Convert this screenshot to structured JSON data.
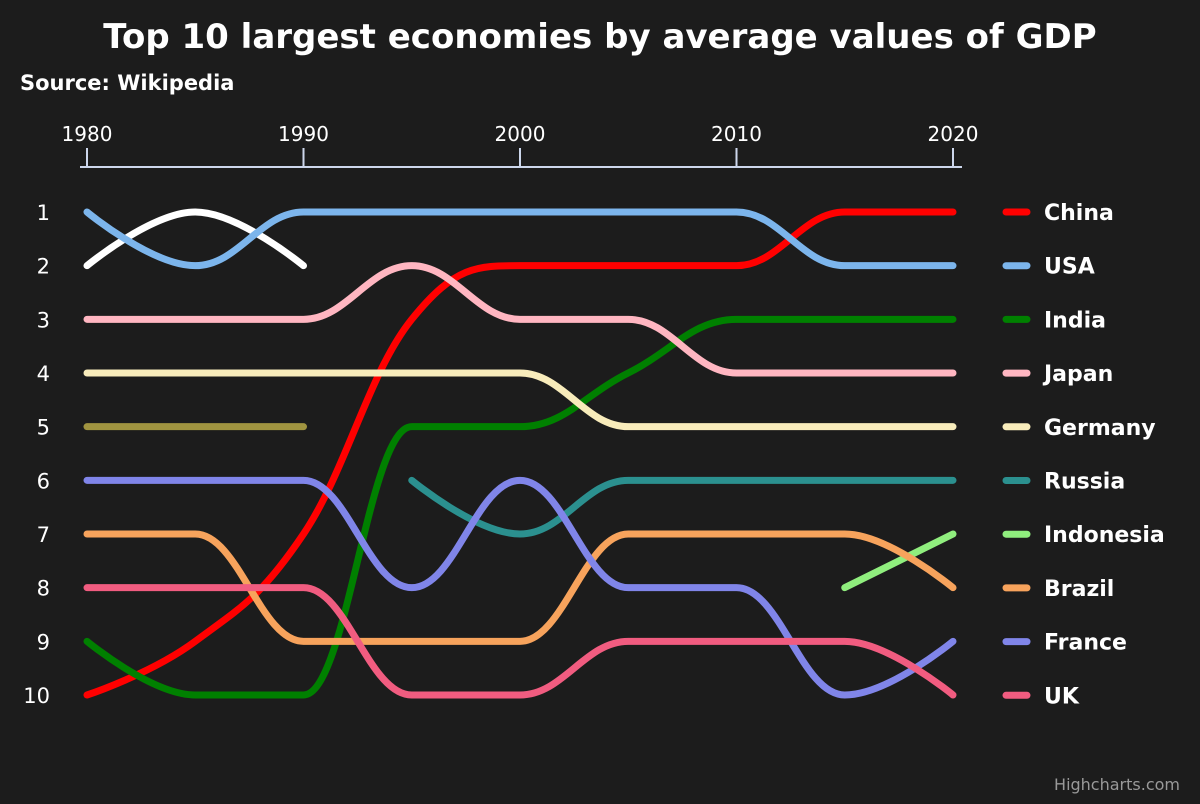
{
  "chart_data": {
    "type": "line",
    "title": "Top 10 largest economies by average values of GDP",
    "subtitle": "Source: Wikipedia",
    "credits": "Highcharts.com",
    "x": [
      1980,
      1985,
      1990,
      1995,
      2000,
      2005,
      2010,
      2015,
      2020
    ],
    "x_ticks": [
      "1980",
      "1990",
      "2000",
      "2010",
      "2020"
    ],
    "x_axis_position": "top",
    "y_ticks": [
      "1",
      "2",
      "3",
      "4",
      "5",
      "6",
      "7",
      "8",
      "9",
      "10"
    ],
    "ylim": [
      1,
      10
    ],
    "y_reversed": true,
    "grid": false,
    "legend_position": "right",
    "smoothing": "spline",
    "series": [
      {
        "name": "",
        "color": "#ffffff",
        "values": [
          2,
          1,
          2,
          null,
          null,
          null,
          null,
          null,
          null
        ]
      },
      {
        "name": "",
        "color": "#a09440",
        "values": [
          5,
          5,
          5,
          null,
          null,
          null,
          null,
          null,
          null
        ]
      },
      {
        "name": "China",
        "color": "#ff0000",
        "values": [
          10,
          9,
          7,
          3,
          2,
          2,
          2,
          1,
          1
        ]
      },
      {
        "name": "USA",
        "color": "#7cb5ec",
        "values": [
          1,
          2,
          1,
          1,
          1,
          1,
          1,
          2,
          2
        ]
      },
      {
        "name": "India",
        "color": "#008000",
        "values": [
          9,
          10,
          10,
          5,
          5,
          4,
          3,
          3,
          3
        ]
      },
      {
        "name": "Japan",
        "color": "#ffb6c1",
        "values": [
          3,
          3,
          3,
          2,
          3,
          3,
          4,
          4,
          4
        ]
      },
      {
        "name": "Germany",
        "color": "#f8ecbb",
        "values": [
          4,
          4,
          4,
          4,
          4,
          5,
          5,
          5,
          5
        ]
      },
      {
        "name": "Russia",
        "color": "#2b908f",
        "values": [
          null,
          null,
          null,
          6,
          7,
          6,
          6,
          6,
          6
        ]
      },
      {
        "name": "Indonesia",
        "color": "#90ee7e",
        "values": [
          null,
          null,
          null,
          null,
          null,
          null,
          null,
          8,
          7
        ]
      },
      {
        "name": "Brazil",
        "color": "#f7a35c",
        "values": [
          7,
          7,
          9,
          9,
          9,
          7,
          7,
          7,
          8
        ]
      },
      {
        "name": "France",
        "color": "#8085e9",
        "values": [
          6,
          6,
          6,
          8,
          6,
          8,
          8,
          10,
          9
        ]
      },
      {
        "name": "UK",
        "color": "#f15c80",
        "values": [
          8,
          8,
          8,
          10,
          10,
          9,
          9,
          9,
          10
        ]
      }
    ]
  }
}
